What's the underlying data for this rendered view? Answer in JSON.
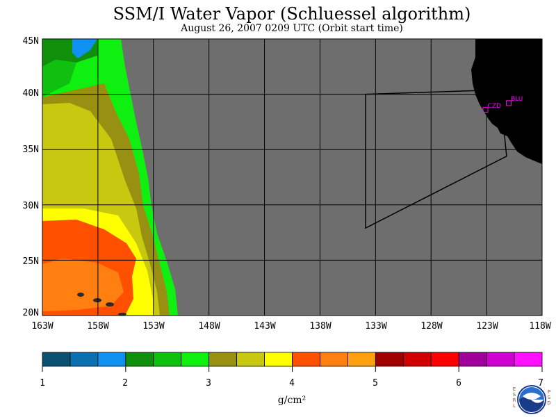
{
  "title": "SSM/I Water Vapor (Schluessel algorithm)",
  "subtitle": "August 26, 2007  0209 UTC  (Orbit start time)",
  "map": {
    "lat_labels": [
      "45N",
      "40N",
      "35N",
      "30N",
      "25N",
      "20N"
    ],
    "lon_labels": [
      "163W",
      "158W",
      "153W",
      "148W",
      "143W",
      "138W",
      "133W",
      "128W",
      "123W",
      "118W"
    ],
    "stations": [
      {
        "name": "CZD",
        "lon": -123.1,
        "lat": 38.6
      },
      {
        "name": "BLU",
        "lon": -121.0,
        "lat": 39.2
      }
    ],
    "flight_track": [
      [
        -133.9,
        40.0
      ],
      [
        -121.8,
        40.4
      ],
      [
        -121.2,
        34.4
      ],
      [
        -133.9,
        27.9
      ],
      [
        -133.9,
        40.0
      ]
    ],
    "colors": {
      "no_data": "#6e6e6e",
      "land": "#000000",
      "station": "#ff00ff",
      "grid": "#000000"
    }
  },
  "colorbar": {
    "tick_labels": [
      "1",
      "2",
      "3",
      "4",
      "5",
      "6",
      "7"
    ],
    "units": "g/cm²",
    "colors": [
      "#0a5070",
      "#0a70b0",
      "#1090f0",
      "#10900a",
      "#10c010",
      "#10f010",
      "#989010",
      "#c8c810",
      "#ffff00",
      "#ff5000",
      "#ff8010",
      "#ffa010",
      "#a00000",
      "#d00000",
      "#ff0000",
      "#a0009a",
      "#d000d0",
      "#ff10ff"
    ]
  },
  "logo": {
    "left_letters": [
      "E",
      "S",
      "R",
      "L"
    ],
    "right_letters": [
      "P",
      "S",
      "D"
    ],
    "center_text": "NOAA"
  }
}
